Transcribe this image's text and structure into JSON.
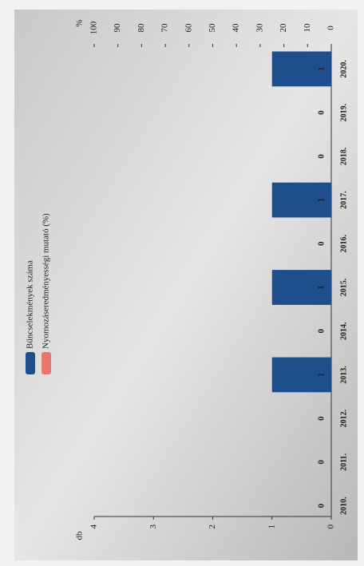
{
  "chart_data": {
    "type": "bar",
    "categories": [
      "2010.",
      "2011.",
      "2012.",
      "2013.",
      "2014.",
      "2015.",
      "2016.",
      "2017.",
      "2018.",
      "2019.",
      "2020."
    ],
    "ylabel": "db",
    "ylim": [
      0,
      4
    ],
    "yticks": [
      0,
      1,
      2,
      3,
      4
    ],
    "y2label": "%",
    "y2lim": [
      0,
      100
    ],
    "y2ticks": [
      0,
      10,
      20,
      30,
      40,
      50,
      60,
      70,
      80,
      90,
      100
    ],
    "series": [
      {
        "name": "Bűncselekmények száma",
        "color": "#1f4e8c",
        "values": [
          0,
          0,
          0,
          1,
          0,
          1,
          0,
          1,
          0,
          0,
          1
        ]
      },
      {
        "name": "Nyomozáseredményességi mutató (%)",
        "color": "#e8766b",
        "axis": "y2",
        "values": [
          null,
          null,
          null,
          null,
          null,
          null,
          null,
          null,
          null,
          null,
          null
        ]
      }
    ],
    "legend": "top-left"
  }
}
